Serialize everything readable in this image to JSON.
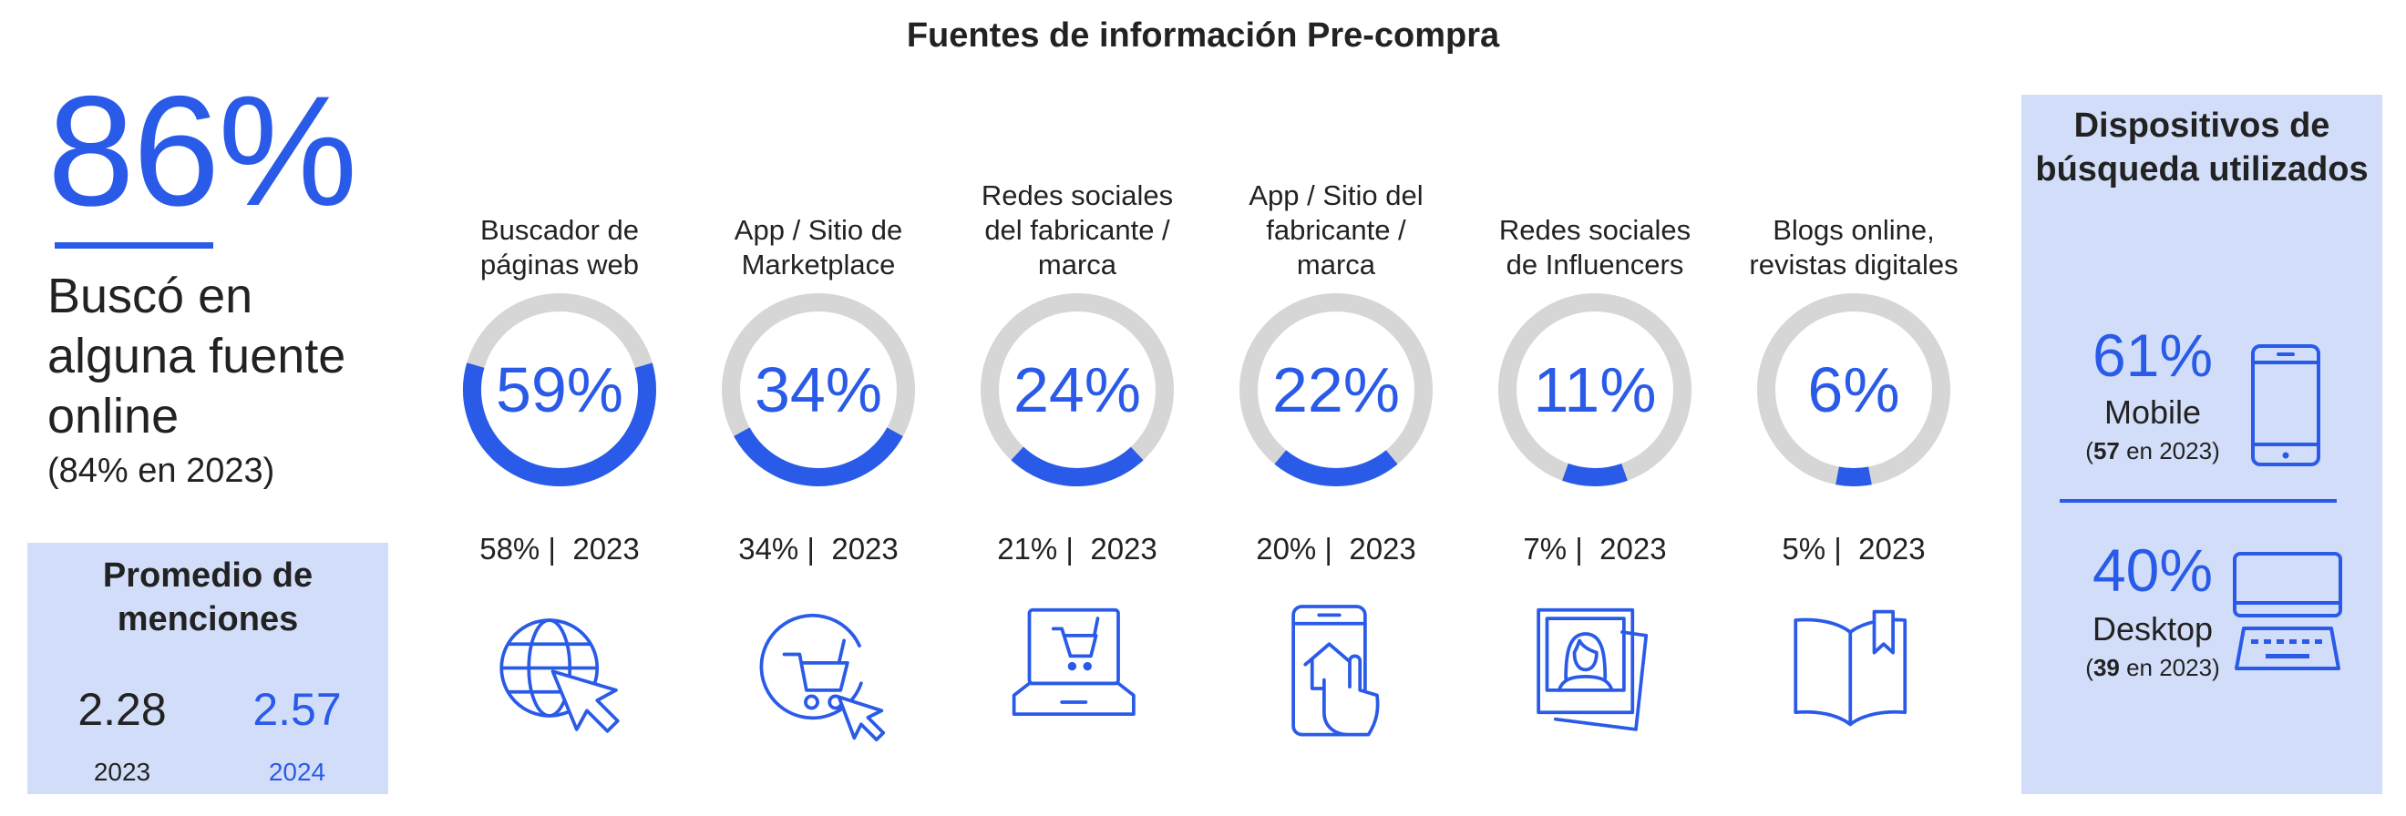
{
  "title": "Fuentes de información Pre-compra",
  "summary": {
    "percent": "86%",
    "description": "Buscó en alguna fuente online",
    "previous": "(84% en 2023)"
  },
  "average_mentions": {
    "title": "Promedio de menciones",
    "values": [
      {
        "value": "2.28",
        "year": "2023"
      },
      {
        "value": "2.57",
        "year": "2024"
      }
    ]
  },
  "colors": {
    "accent": "#2a5be8",
    "ring_track": "#d6d6d6",
    "panel": "#d2def9"
  },
  "chart_data": {
    "type": "donut",
    "title": "Fuentes de información Pre-compra",
    "unit": "%",
    "categories": [
      "Buscador de páginas web",
      "App / Sitio de Marketplace",
      "Redes sociales del fabricante / marca",
      "App / Sitio del fabricante / marca",
      "Redes sociales de Influencers",
      "Blogs online, revistas digitales"
    ],
    "series": [
      {
        "name": "2024",
        "values": [
          59,
          34,
          24,
          22,
          11,
          6
        ]
      },
      {
        "name": "2023",
        "values": [
          58,
          34,
          21,
          20,
          7,
          5
        ]
      }
    ]
  },
  "sources": [
    {
      "label_lines": [
        "Buscador de",
        "páginas web"
      ],
      "pct_text": "59%",
      "prev_text": "58% |  2023",
      "icon": "globe-cursor-icon"
    },
    {
      "label_lines": [
        "App / Sitio de",
        "Marketplace"
      ],
      "pct_text": "34%",
      "prev_text": "34% |  2023",
      "icon": "cart-cursor-icon"
    },
    {
      "label_lines": [
        "Redes sociales",
        "del fabricante /",
        "marca"
      ],
      "pct_text": "24%",
      "prev_text": "21% |  2023",
      "icon": "laptop-cart-icon"
    },
    {
      "label_lines": [
        "App / Sitio del",
        "fabricante /",
        "marca"
      ],
      "pct_text": "22%",
      "prev_text": "20% |  2023",
      "icon": "phone-touch-icon"
    },
    {
      "label_lines": [
        "Redes sociales",
        "de Influencers"
      ],
      "pct_text": "11%",
      "prev_text": "7% |  2023",
      "icon": "influencer-photo-icon"
    },
    {
      "label_lines": [
        "Blogs online,",
        "revistas digitales"
      ],
      "pct_text": "6%",
      "prev_text": "5% |  2023",
      "icon": "book-bookmark-icon"
    }
  ],
  "devices": {
    "title": "Dispositivos de búsqueda utilizados",
    "items": [
      {
        "pct": "61%",
        "name": "Mobile",
        "prev_value": "57",
        "prev_suffix": " en 2023)",
        "icon": "smartphone-icon"
      },
      {
        "pct": "40%",
        "name": "Desktop",
        "prev_value": "39",
        "prev_suffix": " en 2023)",
        "icon": "desktop-computer-icon"
      }
    ]
  }
}
